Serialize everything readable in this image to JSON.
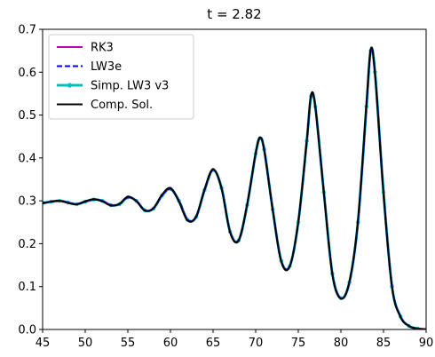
{
  "chart_data": {
    "type": "line",
    "title": "t = 2.82",
    "xlabel": "",
    "ylabel": "",
    "xlim": [
      45,
      90
    ],
    "ylim": [
      0.0,
      0.7
    ],
    "xticks": [
      45,
      50,
      55,
      60,
      65,
      70,
      75,
      80,
      85,
      90
    ],
    "yticks": [
      0.0,
      0.1,
      0.2,
      0.3,
      0.4,
      0.5,
      0.6,
      0.7
    ],
    "grid": false,
    "legend_position": "top-left",
    "x": [
      45,
      46,
      47,
      48,
      49,
      50,
      51,
      52,
      53,
      54,
      55,
      56,
      57,
      58,
      59,
      60,
      61,
      62,
      63,
      64,
      65,
      66,
      67,
      68,
      69,
      70,
      70.5,
      71,
      72,
      73,
      74,
      75,
      76,
      76.5,
      77,
      78,
      79,
      80,
      81,
      82,
      83,
      83.5,
      84,
      85,
      86,
      87,
      88,
      89,
      90
    ],
    "series": [
      {
        "name": "RK3",
        "color": "#bf00bf",
        "style": "solid",
        "values": [
          0.295,
          0.298,
          0.3,
          0.296,
          0.292,
          0.298,
          0.303,
          0.3,
          0.29,
          0.292,
          0.308,
          0.3,
          0.278,
          0.282,
          0.312,
          0.328,
          0.3,
          0.256,
          0.262,
          0.325,
          0.372,
          0.33,
          0.228,
          0.208,
          0.29,
          0.41,
          0.446,
          0.42,
          0.28,
          0.16,
          0.148,
          0.25,
          0.44,
          0.544,
          0.52,
          0.32,
          0.13,
          0.073,
          0.11,
          0.25,
          0.52,
          0.65,
          0.6,
          0.32,
          0.1,
          0.03,
          0.008,
          0.002,
          0.0
        ]
      },
      {
        "name": "LW3e",
        "color": "#0000ff",
        "style": "dashed",
        "values": [
          0.295,
          0.298,
          0.3,
          0.296,
          0.292,
          0.298,
          0.303,
          0.3,
          0.29,
          0.292,
          0.308,
          0.3,
          0.278,
          0.282,
          0.312,
          0.328,
          0.3,
          0.256,
          0.262,
          0.325,
          0.372,
          0.33,
          0.228,
          0.208,
          0.29,
          0.41,
          0.446,
          0.42,
          0.28,
          0.16,
          0.148,
          0.25,
          0.44,
          0.544,
          0.52,
          0.32,
          0.13,
          0.073,
          0.11,
          0.25,
          0.52,
          0.65,
          0.6,
          0.32,
          0.1,
          0.03,
          0.008,
          0.002,
          0.0
        ]
      },
      {
        "name": "Simp. LW3 v3",
        "color": "#00bfbf",
        "style": "solid-markers",
        "values": [
          0.295,
          0.298,
          0.3,
          0.296,
          0.292,
          0.298,
          0.303,
          0.3,
          0.29,
          0.292,
          0.308,
          0.3,
          0.278,
          0.282,
          0.312,
          0.328,
          0.3,
          0.256,
          0.262,
          0.325,
          0.372,
          0.33,
          0.228,
          0.208,
          0.29,
          0.41,
          0.446,
          0.42,
          0.28,
          0.16,
          0.148,
          0.25,
          0.44,
          0.544,
          0.52,
          0.32,
          0.13,
          0.073,
          0.11,
          0.25,
          0.52,
          0.65,
          0.6,
          0.32,
          0.1,
          0.03,
          0.008,
          0.002,
          0.0
        ]
      },
      {
        "name": "Comp. Sol.",
        "color": "#000000",
        "style": "solid",
        "values": [
          0.294,
          0.298,
          0.3,
          0.295,
          0.292,
          0.299,
          0.304,
          0.299,
          0.289,
          0.293,
          0.31,
          0.299,
          0.277,
          0.283,
          0.314,
          0.33,
          0.298,
          0.254,
          0.263,
          0.327,
          0.374,
          0.328,
          0.226,
          0.207,
          0.292,
          0.412,
          0.448,
          0.418,
          0.278,
          0.158,
          0.147,
          0.252,
          0.442,
          0.547,
          0.518,
          0.318,
          0.128,
          0.072,
          0.112,
          0.254,
          0.528,
          0.654,
          0.596,
          0.316,
          0.098,
          0.029,
          0.008,
          0.002,
          0.0
        ]
      }
    ]
  }
}
